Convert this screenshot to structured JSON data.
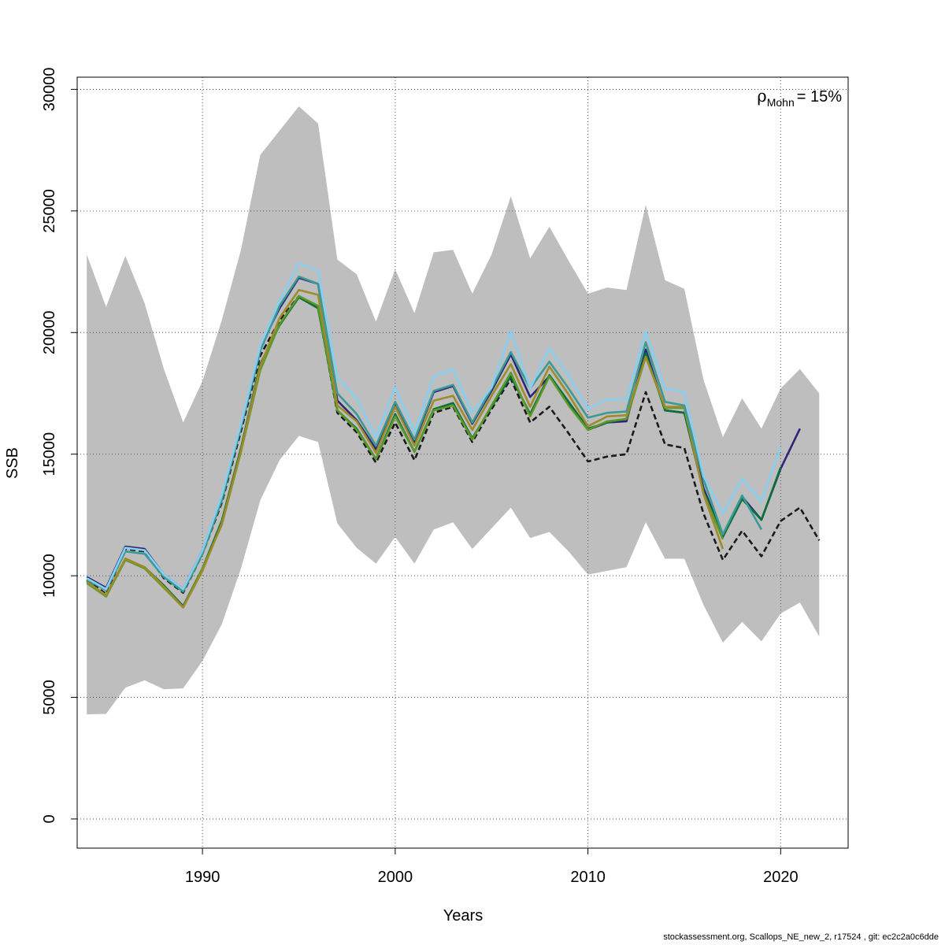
{
  "chart_data": {
    "type": "line",
    "xlabel": "Years",
    "ylabel": "SSB",
    "xlim": [
      1983.5,
      2023.5
    ],
    "ylim": [
      -1200,
      30500
    ],
    "x_ticks": [
      1990,
      2000,
      2010,
      2020
    ],
    "y_ticks": [
      0,
      5000,
      10000,
      15000,
      20000,
      25000,
      30000
    ],
    "grid": true,
    "annotation": {
      "rho_symbol": "ρ",
      "subscript": "Mohn",
      "equals": "= 15%"
    },
    "confidence_band": {
      "x": [
        1984,
        1985,
        1986,
        1987,
        1988,
        1989,
        1990,
        1991,
        1992,
        1993,
        1994,
        1995,
        1996,
        1997,
        1998,
        1999,
        2000,
        2001,
        2002,
        2003,
        2004,
        2005,
        2006,
        2007,
        2008,
        2009,
        2010,
        2011,
        2012,
        2013,
        2014,
        2015,
        2016,
        2017,
        2018,
        2019,
        2020,
        2021,
        2022
      ],
      "upper": [
        23200,
        21050,
        23150,
        21200,
        18500,
        16300,
        18000,
        20500,
        23400,
        27300,
        28300,
        29300,
        28600,
        23000,
        22400,
        20450,
        22600,
        20800,
        23300,
        23400,
        21600,
        23200,
        25600,
        23050,
        24350,
        22950,
        21600,
        21850,
        21750,
        25250,
        22150,
        21800,
        18050,
        15700,
        17300,
        16050,
        17700,
        18500,
        17500
      ],
      "lower": [
        4300,
        4320,
        5400,
        5700,
        5330,
        5370,
        6500,
        8000,
        10300,
        13100,
        14750,
        15750,
        15500,
        12150,
        11150,
        10500,
        11600,
        10500,
        11900,
        12200,
        11100,
        11950,
        12800,
        11550,
        11800,
        11000,
        10050,
        10200,
        10350,
        12200,
        10700,
        10700,
        8800,
        7250,
        8100,
        7300,
        8450,
        8900,
        7500
      ]
    },
    "series": [
      {
        "color": "#1a1a1a",
        "dashed": true,
        "x": [
          1984,
          1985,
          1986,
          1987,
          1988,
          1989,
          1990,
          1991,
          1992,
          1993,
          1994,
          1995,
          1996,
          1997,
          1998,
          1999,
          2000,
          2001,
          2002,
          2003,
          2004,
          2005,
          2006,
          2007,
          2008,
          2009,
          2010,
          2011,
          2012,
          2013,
          2014,
          2015,
          2016,
          2017,
          2018,
          2019,
          2020,
          2021,
          2022
        ],
        "values": [
          9850,
          9250,
          11100,
          11000,
          9900,
          9300,
          10900,
          13000,
          15950,
          19050,
          20500,
          21500,
          21050,
          16700,
          15900,
          14650,
          16300,
          14750,
          16700,
          16950,
          15500,
          16850,
          18100,
          16300,
          16950,
          15850,
          14700,
          14900,
          15000,
          17550,
          15400,
          15250,
          12550,
          10650,
          11850,
          10800,
          12250,
          12800,
          11450
        ]
      },
      {
        "color": "#2d2677",
        "dashed": false,
        "x": [
          1984,
          1985,
          1986,
          1987,
          1988,
          1989,
          1990,
          1991,
          1992,
          1993,
          1994,
          1995,
          1996,
          1997,
          1998,
          1999,
          2000,
          2001,
          2002,
          2003,
          2004,
          2005,
          2006,
          2007,
          2008,
          2009,
          2010,
          2011,
          2012,
          2013,
          2014,
          2015,
          2016,
          2017,
          2018,
          2019,
          2020,
          2021
        ],
        "values": [
          9950,
          9500,
          11200,
          11100,
          10050,
          9450,
          11050,
          13250,
          16200,
          19400,
          21000,
          22250,
          22000,
          17200,
          16400,
          15200,
          17000,
          15500,
          17550,
          17800,
          16250,
          17600,
          19100,
          17350,
          18200,
          17100,
          16000,
          16300,
          16350,
          19300,
          16800,
          16700,
          13600,
          11600,
          13250,
          12300,
          14400,
          16050
        ]
      },
      {
        "color": "#0c6e3a",
        "dashed": false,
        "x": [
          1984,
          1985,
          1986,
          1987,
          1988,
          1989,
          1990,
          1991,
          1992,
          1993,
          1994,
          1995,
          1996,
          1997,
          1998,
          1999,
          2000,
          2001,
          2002,
          2003,
          2004,
          2005,
          2006,
          2007,
          2008,
          2009,
          2010,
          2011,
          2012,
          2013,
          2014,
          2015,
          2016,
          2017,
          2018,
          2019,
          2020
        ],
        "values": [
          9800,
          9150,
          10700,
          10350,
          9600,
          8750,
          10300,
          12250,
          15250,
          18700,
          20300,
          21450,
          21000,
          16800,
          16050,
          14800,
          16650,
          15100,
          16850,
          17100,
          15650,
          16950,
          18200,
          16650,
          18250,
          17150,
          16050,
          16300,
          16450,
          19150,
          16800,
          16700,
          13450,
          11600,
          13150,
          12300,
          14450
        ]
      },
      {
        "color": "#5b9a2a",
        "dashed": false,
        "x": [
          1984,
          1985,
          1986,
          1987,
          1988,
          1989,
          1990,
          1991,
          1992,
          1993,
          1994,
          1995,
          1996,
          1997,
          1998,
          1999,
          2000,
          2001,
          2002,
          2003,
          2004,
          2005,
          2006,
          2007,
          2008,
          2009,
          2010,
          2011,
          2012,
          2013,
          2014,
          2015,
          2016,
          2017
        ],
        "values": [
          9700,
          9150,
          10650,
          10300,
          9500,
          8700,
          10300,
          12100,
          15100,
          18450,
          20350,
          21500,
          21100,
          16800,
          16000,
          14800,
          16550,
          15100,
          16800,
          17000,
          15600,
          17000,
          18350,
          16550,
          18200,
          17000,
          16000,
          16350,
          16450,
          19000,
          16900,
          16900,
          13400,
          11500
        ]
      },
      {
        "color": "#a08a2a",
        "dashed": false,
        "x": [
          1984,
          1985,
          1986,
          1987,
          1988,
          1989,
          1990,
          1991,
          1992,
          1993,
          1994,
          1995,
          1996,
          1997,
          1998,
          1999,
          2000,
          2001,
          2002,
          2003,
          2004,
          2005,
          2006,
          2007,
          2008,
          2009,
          2010,
          2011,
          2012,
          2013,
          2014,
          2015,
          2016,
          2017
        ],
        "values": [
          9750,
          9200,
          10700,
          10350,
          9550,
          8700,
          10200,
          12150,
          15150,
          18600,
          20600,
          21750,
          21550,
          17000,
          16350,
          15050,
          16950,
          15350,
          17200,
          17400,
          16000,
          17400,
          18700,
          16950,
          18600,
          17450,
          16150,
          16550,
          16600,
          19000,
          16950,
          16950,
          13350,
          11100
        ]
      },
      {
        "color": "#3a9a95",
        "dashed": false,
        "x": [
          1984,
          1985,
          1986,
          1987,
          1988,
          1989,
          1990,
          1991,
          1992,
          1993,
          1994,
          1995,
          1996,
          1997,
          1998,
          1999,
          2000,
          2001,
          2002,
          2003,
          2004,
          2005,
          2006,
          2007,
          2008,
          2009,
          2010,
          2011,
          2012,
          2013,
          2014,
          2015,
          2016,
          2017,
          2018,
          2019
        ],
        "values": [
          9850,
          9400,
          11000,
          10900,
          9950,
          9350,
          10900,
          13100,
          16100,
          19250,
          21100,
          22300,
          22000,
          17500,
          16650,
          15350,
          17150,
          15600,
          17600,
          17850,
          16300,
          17700,
          19200,
          17700,
          18800,
          17700,
          16500,
          16700,
          16750,
          19600,
          17150,
          17000,
          13950,
          11700,
          13300,
          11900
        ]
      },
      {
        "color": "#87cef0",
        "dashed": false,
        "x": [
          1984,
          1985,
          1986,
          1987,
          1988,
          1989,
          1990,
          1991,
          1992,
          1993,
          1994,
          1995,
          1996,
          1997,
          1998,
          1999,
          2000,
          2001,
          2002,
          2003,
          2004,
          2005,
          2006,
          2007,
          2008,
          2009,
          2010,
          2011,
          2012,
          2013,
          2014,
          2015,
          2016,
          2017,
          2018,
          2019,
          2020
        ],
        "values": [
          9900,
          9450,
          11150,
          11050,
          10050,
          9450,
          11050,
          13300,
          16250,
          19450,
          21300,
          22850,
          22550,
          18150,
          17300,
          15700,
          17750,
          15900,
          18200,
          18500,
          16700,
          17750,
          20050,
          17700,
          19350,
          18250,
          16850,
          17250,
          17250,
          20050,
          17700,
          17550,
          14100,
          12550,
          14000,
          13050,
          15300
        ]
      }
    ]
  },
  "footer": "stockassessment.org, Scallops_NE_new_2, r17524 , git: ec2c2a0c6dde"
}
